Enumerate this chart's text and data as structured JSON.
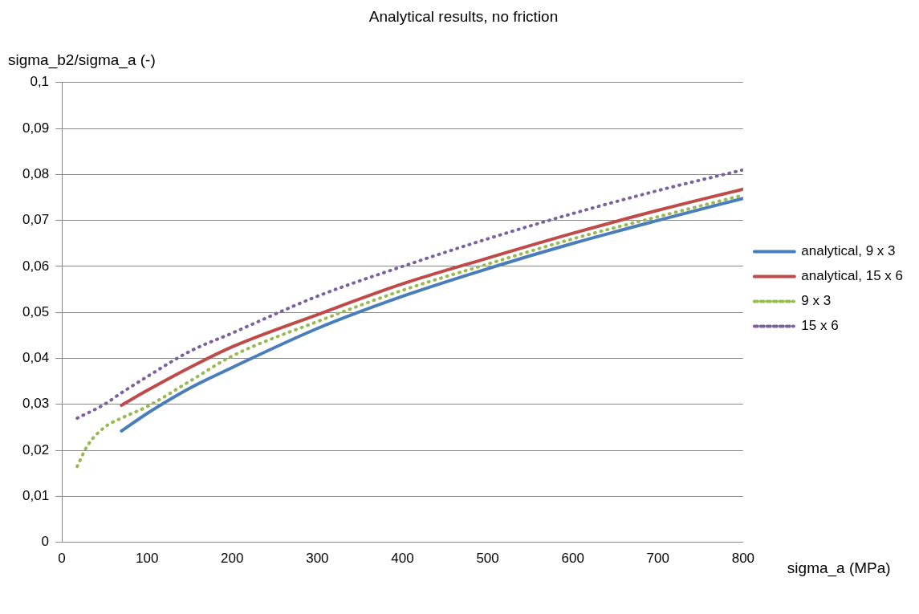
{
  "chart_data": {
    "type": "line",
    "title": "Analytical results, no friction",
    "xlabel": "sigma_a (MPa)",
    "ylabel": "sigma_b2/sigma_a (-)",
    "xlim": [
      0,
      800
    ],
    "xticks": [
      0,
      100,
      200,
      300,
      400,
      500,
      600,
      700,
      800
    ],
    "ylim": [
      0,
      0.1
    ],
    "yticks": [
      0,
      {
        "value": 0.01,
        "label": "0,01"
      },
      {
        "value": 0.02,
        "label": "0,02"
      },
      {
        "value": 0.03,
        "label": "0,03"
      },
      {
        "value": 0.04,
        "label": "0,04"
      },
      {
        "value": 0.05,
        "label": "0,05"
      },
      {
        "value": 0.06,
        "label": "0,06"
      },
      {
        "value": 0.07,
        "label": "0,07"
      },
      {
        "value": 0.08,
        "label": "0,08"
      },
      {
        "value": 0.09,
        "label": "0,09"
      },
      {
        "value": 0.1,
        "label": "0,1"
      }
    ],
    "grid": "y",
    "legend": "right",
    "marker": "none",
    "series": [
      {
        "name": "analytical, 9 x 3",
        "color": "#4a7ebb",
        "line_style": "solid",
        "x": [
          70,
          100,
          150,
          200,
          300,
          400,
          500,
          600,
          700,
          800
        ],
        "values": [
          0.0242,
          0.028,
          0.0335,
          0.038,
          0.0465,
          0.0535,
          0.0595,
          0.065,
          0.07,
          0.0748
        ]
      },
      {
        "name": "analytical, 15 x 6",
        "color": "#be4b48",
        "line_style": "solid",
        "x": [
          70,
          100,
          150,
          200,
          300,
          400,
          500,
          600,
          700,
          800
        ],
        "values": [
          0.0298,
          0.033,
          0.038,
          0.0425,
          0.0495,
          0.0562,
          0.0618,
          0.0672,
          0.0722,
          0.0768
        ]
      },
      {
        "name": "9 x 3",
        "color": "#98b954",
        "line_style": "dotted",
        "x": [
          18,
          30,
          50,
          70,
          100,
          150,
          200,
          300,
          400,
          500,
          600,
          700,
          800
        ],
        "values": [
          0.0165,
          0.021,
          0.025,
          0.027,
          0.0295,
          0.035,
          0.0405,
          0.048,
          0.0548,
          0.0605,
          0.066,
          0.0708,
          0.0755
        ]
      },
      {
        "name": "15 x 6",
        "color": "#7d60a0",
        "line_style": "dotted",
        "x": [
          18,
          50,
          70,
          100,
          150,
          200,
          300,
          400,
          500,
          600,
          700,
          800
        ],
        "values": [
          0.027,
          0.03,
          0.0325,
          0.036,
          0.0415,
          0.0455,
          0.0535,
          0.06,
          0.066,
          0.0715,
          0.0765,
          0.081
        ]
      }
    ]
  }
}
